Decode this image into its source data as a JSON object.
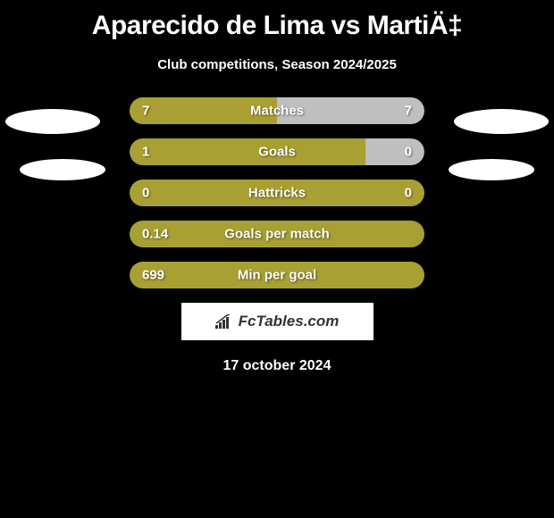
{
  "title": "Aparecido de Lima vs MartiÄ‡",
  "subtitle": "Club competitions, Season 2024/2025",
  "colors": {
    "background": "#000000",
    "bar_primary": "#a8a032",
    "bar_secondary": "#bfbfbf",
    "text": "#ffffff"
  },
  "bars": [
    {
      "label": "Matches",
      "left_value": "7",
      "right_value": "7",
      "fill_percent": 50,
      "bg_color": "#bfbfbf",
      "fill_color": "#a8a032"
    },
    {
      "label": "Goals",
      "left_value": "1",
      "right_value": "0",
      "fill_percent": 80,
      "bg_color": "#bfbfbf",
      "fill_color": "#a8a032"
    },
    {
      "label": "Hattricks",
      "left_value": "0",
      "right_value": "0",
      "fill_percent": 100,
      "bg_color": "#a8a032",
      "fill_color": "#a8a032"
    },
    {
      "label": "Goals per match",
      "left_value": "0.14",
      "right_value": "",
      "fill_percent": 100,
      "bg_color": "#a8a032",
      "fill_color": "#a8a032"
    },
    {
      "label": "Min per goal",
      "left_value": "699",
      "right_value": "",
      "fill_percent": 100,
      "bg_color": "#a8a032",
      "fill_color": "#a8a032"
    }
  ],
  "attribution": "FcTables.com",
  "date": "17 october 2024"
}
